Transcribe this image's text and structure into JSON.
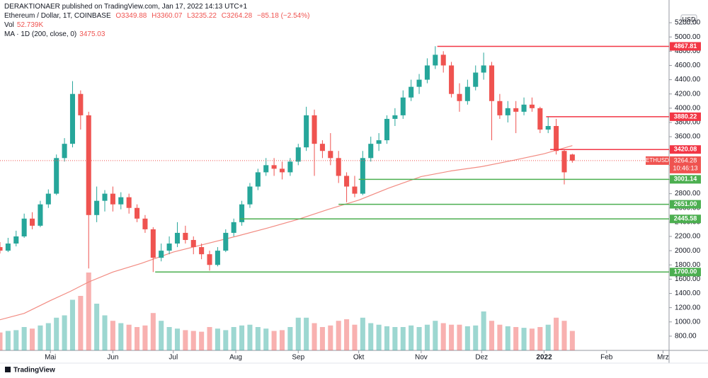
{
  "header": {
    "publisher": "DERAKTIONAER published on TradingView.com, Jan 17, 2022 14:13 UTC+1",
    "symbol": "Ethereum / Dollar, 1T, COINBASE",
    "ohlc": [
      "O3349.88",
      "H3360.07",
      "L3235.22",
      "C3264.28",
      "−85.18 (−2.54%)"
    ],
    "vol_label": "Vol",
    "vol_value": "52.739K",
    "ma_label": "MA · 1D (200, close, 0)",
    "ma_value": "3475.03"
  },
  "branding": "TradingView",
  "chart_data": {
    "type": "candlestick",
    "currency": "USD",
    "x": [
      0,
      4,
      8,
      12,
      16,
      20,
      24,
      28,
      32,
      36,
      40,
      44,
      48,
      52,
      56,
      60,
      64,
      68,
      72,
      76,
      80,
      84,
      88,
      92,
      96,
      100,
      104,
      108,
      112,
      116,
      120,
      124,
      128,
      132,
      136,
      140,
      144,
      148,
      152,
      156,
      160,
      164,
      168,
      172,
      176,
      180,
      184,
      188,
      192,
      196,
      200,
      204,
      208,
      212,
      216,
      220,
      224,
      228,
      232,
      236,
      240,
      244,
      248,
      252,
      256,
      260,
      264,
      268,
      272,
      276,
      280,
      284
    ],
    "open": [
      2050,
      2000,
      2100,
      2200,
      2450,
      2350,
      2650,
      2800,
      3300,
      3500,
      4200,
      3900,
      2500,
      2700,
      2800,
      2650,
      2750,
      2600,
      2450,
      2300,
      1900,
      2000,
      2100,
      2250,
      2150,
      2050,
      1950,
      1800,
      2000,
      2250,
      2400,
      2650,
      2900,
      3100,
      3200,
      3150,
      3100,
      3250,
      3450,
      3900,
      3500,
      3400,
      3300,
      3050,
      2900,
      2800,
      3300,
      3500,
      3550,
      3850,
      3900,
      4150,
      4300,
      4400,
      4600,
      4750,
      4600,
      4200,
      4100,
      4300,
      4500,
      4600,
      4100,
      3900,
      4000,
      3950,
      4050,
      4000,
      3700,
      3750,
      3400,
      3349.88
    ],
    "high": [
      2120,
      2180,
      2280,
      2520,
      2540,
      2700,
      2860,
      3350,
      3580,
      4380,
      4250,
      3950,
      2900,
      2850,
      2900,
      2820,
      2800,
      2650,
      2500,
      2330,
      2100,
      2200,
      2400,
      2350,
      2200,
      2100,
      2000,
      2050,
      2300,
      2450,
      2700,
      2950,
      3150,
      3300,
      3300,
      3250,
      3300,
      3500,
      4020,
      3980,
      3550,
      3650,
      3400,
      3100,
      3050,
      3400,
      3600,
      3650,
      3900,
      4000,
      4250,
      4400,
      4480,
      4700,
      4870,
      4800,
      4650,
      4350,
      4400,
      4600,
      4780,
      4650,
      4200,
      4100,
      4100,
      4150,
      4150,
      4020,
      3880,
      3850,
      3420,
      3360.07
    ],
    "low": [
      1960,
      1980,
      2060,
      2180,
      2300,
      2330,
      2600,
      2780,
      3250,
      3450,
      3700,
      1750,
      2400,
      2550,
      2550,
      2580,
      2520,
      2400,
      2250,
      1700,
      1850,
      1950,
      2050,
      2100,
      1950,
      1880,
      1720,
      1780,
      1980,
      2200,
      2350,
      2600,
      2850,
      3050,
      3050,
      3000,
      3050,
      3200,
      3400,
      3050,
      3300,
      3200,
      2950,
      2680,
      2750,
      2780,
      3250,
      3400,
      3500,
      3750,
      3850,
      4100,
      4200,
      4350,
      4550,
      4500,
      4150,
      3950,
      4050,
      4250,
      4400,
      3550,
      3850,
      3800,
      3650,
      3900,
      3950,
      3650,
      3650,
      3350,
      2930,
      3235.22
    ],
    "close": [
      2000,
      2100,
      2200,
      2450,
      2350,
      2650,
      2800,
      3300,
      3500,
      4200,
      3900,
      2500,
      2700,
      2800,
      2650,
      2750,
      2600,
      2450,
      2300,
      1900,
      2000,
      2100,
      2250,
      2150,
      2050,
      1950,
      1800,
      2000,
      2250,
      2400,
      2650,
      2900,
      3100,
      3200,
      3150,
      3100,
      3250,
      3450,
      3900,
      3500,
      3400,
      3300,
      3050,
      2900,
      2800,
      3300,
      3500,
      3550,
      3850,
      3900,
      4150,
      4300,
      4400,
      4600,
      4750,
      4600,
      4200,
      4100,
      4300,
      4500,
      4600,
      4100,
      3900,
      4000,
      3950,
      4050,
      4000,
      3700,
      3750,
      3400,
      3100,
      3264.28
    ],
    "volume": [
      230,
      250,
      260,
      300,
      280,
      320,
      350,
      420,
      450,
      650,
      700,
      1000,
      600,
      450,
      380,
      350,
      330,
      300,
      320,
      480,
      380,
      300,
      280,
      260,
      250,
      240,
      300,
      280,
      260,
      300,
      320,
      330,
      300,
      280,
      250,
      260,
      300,
      420,
      420,
      350,
      300,
      320,
      380,
      400,
      330,
      420,
      350,
      330,
      310,
      300,
      300,
      320,
      300,
      330,
      380,
      350,
      330,
      330,
      310,
      320,
      500,
      380,
      330,
      310,
      300,
      290,
      280,
      300,
      330,
      420,
      380,
      250
    ],
    "up_color": "#26a69a",
    "down_color": "#ef5350",
    "ma": {
      "x": [
        0,
        12,
        25,
        35,
        44,
        56,
        70,
        86,
        100,
        117,
        133,
        148,
        163,
        178,
        193,
        209,
        224,
        239,
        255,
        270,
        284
      ],
      "values": [
        1030,
        1120,
        1300,
        1430,
        1560,
        1700,
        1820,
        1980,
        2080,
        2200,
        2320,
        2440,
        2580,
        2710,
        2880,
        3040,
        3120,
        3180,
        3270,
        3360,
        3475.03
      ],
      "color": "#f28b82"
    },
    "levels": [
      {
        "value": 4867.81,
        "from": 217,
        "color": "#f23645"
      },
      {
        "value": 3880.22,
        "from": 271,
        "color": "#f23645"
      },
      {
        "value": 3420.08,
        "from": 273,
        "color": "#f23645"
      },
      {
        "value": 3001.14,
        "from": 178,
        "color": "#4caf50"
      },
      {
        "value": 2651,
        "label": "2651.00",
        "from": 168,
        "color": "#4caf50"
      },
      {
        "value": 2445.58,
        "from": 119,
        "color": "#4caf50"
      },
      {
        "value": 1700,
        "label": "1700.00",
        "from": 77,
        "color": "#4caf50"
      }
    ],
    "price_label": {
      "symbol": "ETHUSD",
      "value": 3264.28,
      "countdown": "10:46:13"
    },
    "xlim": [
      0,
      332
    ],
    "xticks": [
      {
        "value": 25,
        "label": "Mai"
      },
      {
        "value": 56,
        "label": "Jun"
      },
      {
        "value": 86,
        "label": "Jul"
      },
      {
        "value": 117,
        "label": "Aug"
      },
      {
        "value": 148,
        "label": "Sep"
      },
      {
        "value": 178,
        "label": "Okt"
      },
      {
        "value": 209,
        "label": "Nov"
      },
      {
        "value": 239,
        "label": "Dez"
      },
      {
        "value": 270,
        "label": "2022"
      },
      {
        "value": 301,
        "label": "Feb"
      },
      {
        "value": 329,
        "label": "Mrz"
      }
    ],
    "ylim": [
      600,
      5320
    ],
    "yticks": [
      {
        "value": 800,
        "label": "800.00"
      },
      {
        "value": 1000,
        "label": "1000.00"
      },
      {
        "value": 1200,
        "label": "1200.00"
      },
      {
        "value": 1400,
        "label": "1400.00"
      },
      {
        "value": 1600,
        "label": "1600.00"
      },
      {
        "value": 1800,
        "label": "1800.00"
      },
      {
        "value": 2000,
        "label": "2000.00"
      },
      {
        "value": 2200,
        "label": "2200.00"
      },
      {
        "value": 2400,
        "label": "2400.00"
      },
      {
        "value": 2600,
        "label": "2600.00"
      },
      {
        "value": 2800,
        "label": "2800.00"
      },
      {
        "value": 3000,
        "label": "3000.00"
      },
      {
        "value": 3200,
        "label": "3200.00"
      },
      {
        "value": 3400,
        "label": "3400.00"
      },
      {
        "value": 3600,
        "label": "3600.00"
      },
      {
        "value": 3800,
        "label": "3800.00"
      },
      {
        "value": 4000,
        "label": "4000.00"
      },
      {
        "value": 4200,
        "label": "4200.00"
      },
      {
        "value": 4400,
        "label": "4400.00"
      },
      {
        "value": 4600,
        "label": "4600.00"
      },
      {
        "value": 4800,
        "label": "4800.00"
      },
      {
        "value": 5000,
        "label": "5000.00"
      },
      {
        "value": 5200,
        "label": "5200.00"
      }
    ],
    "grid": false
  }
}
